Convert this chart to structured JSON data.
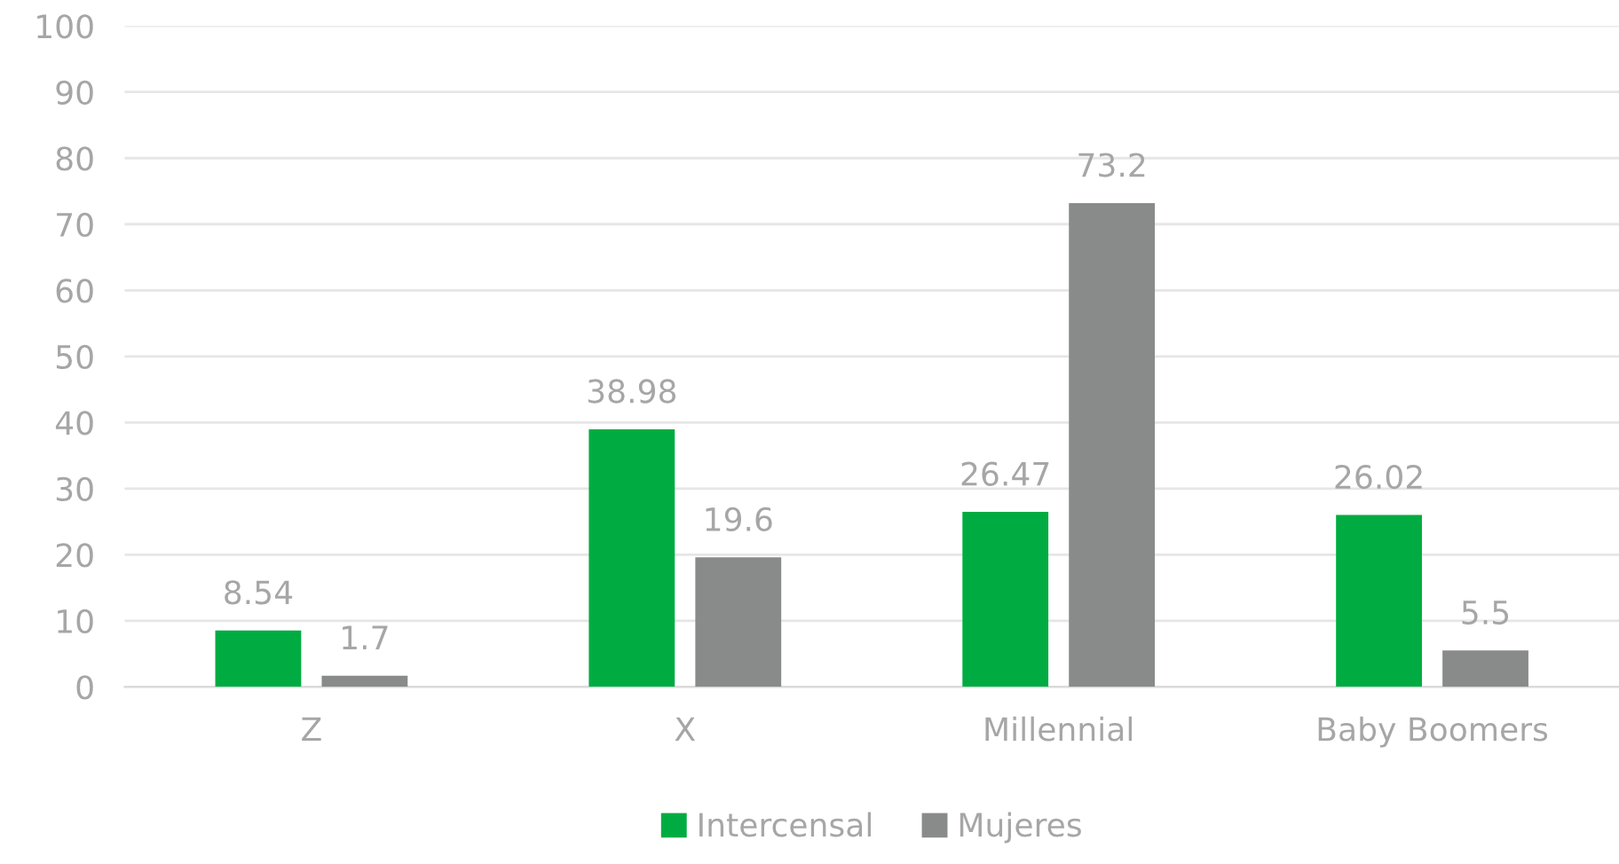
{
  "chart_data": {
    "type": "bar",
    "categories": [
      "Z",
      "X",
      "Millennial",
      "Baby Boomers"
    ],
    "series": [
      {
        "name": "Intercensal",
        "color": "#00ac41",
        "values": [
          8.54,
          38.98,
          26.47,
          26.02
        ]
      },
      {
        "name": "Mujeres",
        "color": "#888b8a",
        "values": [
          1.7,
          19.6,
          73.2,
          5.5
        ]
      }
    ],
    "ylim": [
      0,
      100
    ],
    "yticks": [
      0,
      10,
      20,
      30,
      40,
      50,
      60,
      70,
      80,
      90,
      100
    ],
    "grid": "y",
    "legend": "bottom",
    "data_labels": true
  }
}
